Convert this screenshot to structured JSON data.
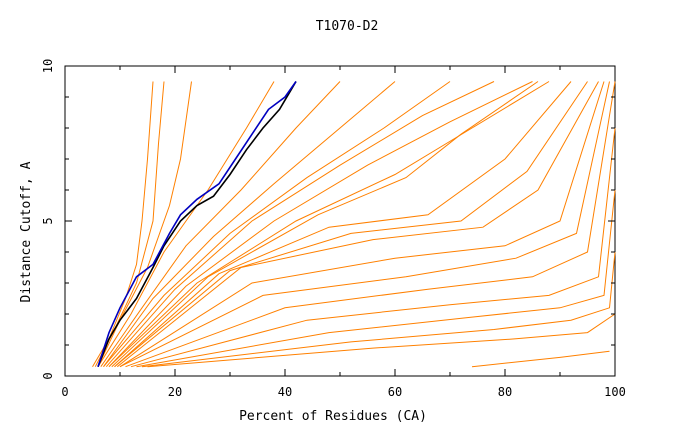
{
  "chart_data": {
    "type": "line",
    "title": "T1070-D2",
    "xlabel": "Percent of Residues (CA)",
    "ylabel": "Distance Cutoff, A",
    "xlim": [
      0,
      100
    ],
    "ylim": [
      0,
      10
    ],
    "xticks": [
      "0",
      "20",
      "40",
      "60",
      "80",
      "100"
    ],
    "yticks": [
      "0",
      "5",
      "10"
    ],
    "grid": false,
    "colors": {
      "orange": "#ff8000",
      "highlight_blue": "#0000c0",
      "highlight_black": "#000000"
    },
    "series": [
      {
        "color": "#ff8000",
        "points": [
          [
            5,
            0.3
          ],
          [
            8,
            1.2
          ],
          [
            11,
            2.5
          ],
          [
            13,
            3.6
          ],
          [
            14,
            5.0
          ],
          [
            15,
            7.0
          ],
          [
            16,
            9.5
          ]
        ]
      },
      {
        "color": "#ff8000",
        "points": [
          [
            5.5,
            0.3
          ],
          [
            9,
            1.5
          ],
          [
            13,
            3.0
          ],
          [
            16,
            5.0
          ],
          [
            17,
            7.5
          ],
          [
            18,
            9.5
          ]
        ]
      },
      {
        "color": "#ff8000",
        "points": [
          [
            6,
            0.3
          ],
          [
            10,
            1.8
          ],
          [
            15,
            3.5
          ],
          [
            19,
            5.5
          ],
          [
            21,
            7.0
          ],
          [
            23,
            9.5
          ]
        ]
      },
      {
        "color": "#ff8000",
        "points": [
          [
            6,
            0.3
          ],
          [
            12,
            2.0
          ],
          [
            18,
            4.0
          ],
          [
            26,
            6.0
          ],
          [
            33,
            8.0
          ],
          [
            38,
            9.5
          ]
        ]
      },
      {
        "color": "#ff8000",
        "points": [
          [
            6.5,
            0.3
          ],
          [
            14,
            2.2
          ],
          [
            22,
            4.2
          ],
          [
            32,
            6.0
          ],
          [
            42,
            8.0
          ],
          [
            50,
            9.5
          ]
        ]
      },
      {
        "color": "#ff8000",
        "points": [
          [
            7,
            0.3
          ],
          [
            16,
            2.5
          ],
          [
            27,
            4.5
          ],
          [
            38,
            6.2
          ],
          [
            50,
            8.0
          ],
          [
            60,
            9.5
          ]
        ]
      },
      {
        "color": "#ff8000",
        "points": [
          [
            7,
            0.3
          ],
          [
            18,
            2.6
          ],
          [
            30,
            4.6
          ],
          [
            44,
            6.4
          ],
          [
            58,
            8.0
          ],
          [
            70,
            9.5
          ]
        ]
      },
      {
        "color": "#ff8000",
        "points": [
          [
            7.5,
            0.3
          ],
          [
            20,
            2.8
          ],
          [
            34,
            5.0
          ],
          [
            50,
            6.8
          ],
          [
            65,
            8.4
          ],
          [
            78,
            9.5
          ]
        ]
      },
      {
        "color": "#ff8000",
        "points": [
          [
            8,
            0.3
          ],
          [
            22,
            2.9
          ],
          [
            38,
            5.0
          ],
          [
            55,
            6.8
          ],
          [
            70,
            8.2
          ],
          [
            85,
            9.5
          ]
        ]
      },
      {
        "color": "#ff8000",
        "points": [
          [
            8,
            0.3
          ],
          [
            24,
            3.0
          ],
          [
            42,
            5.0
          ],
          [
            60,
            6.5
          ],
          [
            74,
            8.0
          ],
          [
            88,
            9.5
          ]
        ]
      },
      {
        "color": "#ff8000",
        "points": [
          [
            8.5,
            0.3
          ],
          [
            26,
            3.2
          ],
          [
            46,
            5.2
          ],
          [
            62,
            6.4
          ],
          [
            72,
            7.8
          ],
          [
            86,
            9.5
          ]
        ]
      },
      {
        "color": "#ff8000",
        "points": [
          [
            9,
            0.3
          ],
          [
            28,
            3.3
          ],
          [
            48,
            4.8
          ],
          [
            66,
            5.2
          ],
          [
            80,
            7.0
          ],
          [
            92,
            9.5
          ]
        ]
      },
      {
        "color": "#ff8000",
        "points": [
          [
            9,
            0.3
          ],
          [
            30,
            3.4
          ],
          [
            52,
            4.6
          ],
          [
            72,
            5.0
          ],
          [
            84,
            6.6
          ],
          [
            95,
            9.5
          ]
        ]
      },
      {
        "color": "#ff8000",
        "points": [
          [
            9.5,
            0.3
          ],
          [
            32,
            3.5
          ],
          [
            56,
            4.4
          ],
          [
            76,
            4.8
          ],
          [
            86,
            6.0
          ],
          [
            97,
            9.5
          ]
        ]
      },
      {
        "color": "#ff8000",
        "points": [
          [
            10,
            0.3
          ],
          [
            34,
            3.0
          ],
          [
            60,
            3.8
          ],
          [
            80,
            4.2
          ],
          [
            90,
            5.0
          ],
          [
            98,
            9.5
          ]
        ]
      },
      {
        "color": "#ff8000",
        "points": [
          [
            10,
            0.3
          ],
          [
            36,
            2.6
          ],
          [
            62,
            3.2
          ],
          [
            82,
            3.8
          ],
          [
            93,
            4.6
          ],
          [
            99,
            9.5
          ]
        ]
      },
      {
        "color": "#ff8000",
        "points": [
          [
            11,
            0.3
          ],
          [
            40,
            2.2
          ],
          [
            66,
            2.8
          ],
          [
            85,
            3.2
          ],
          [
            95,
            4.0
          ],
          [
            100,
            9.5
          ]
        ]
      },
      {
        "color": "#ff8000",
        "points": [
          [
            12,
            0.3
          ],
          [
            44,
            1.8
          ],
          [
            70,
            2.3
          ],
          [
            88,
            2.6
          ],
          [
            97,
            3.2
          ],
          [
            100,
            8.0
          ]
        ]
      },
      {
        "color": "#ff8000",
        "points": [
          [
            13,
            0.3
          ],
          [
            48,
            1.4
          ],
          [
            74,
            1.9
          ],
          [
            90,
            2.2
          ],
          [
            98,
            2.6
          ],
          [
            100,
            6.0
          ]
        ]
      },
      {
        "color": "#ff8000",
        "points": [
          [
            14,
            0.3
          ],
          [
            52,
            1.1
          ],
          [
            78,
            1.5
          ],
          [
            92,
            1.8
          ],
          [
            99,
            2.2
          ],
          [
            100,
            4.0
          ]
        ]
      },
      {
        "color": "#ff8000",
        "points": [
          [
            15,
            0.3
          ],
          [
            56,
            0.9
          ],
          [
            82,
            1.2
          ],
          [
            95,
            1.4
          ],
          [
            100,
            2.0
          ]
        ]
      },
      {
        "color": "#ff8000",
        "points": [
          [
            74,
            0.3
          ],
          [
            90,
            0.6
          ],
          [
            99,
            0.8
          ]
        ]
      },
      {
        "color": "#000000",
        "points": [
          [
            6,
            0.3
          ],
          [
            8,
            1.2
          ],
          [
            10,
            1.8
          ],
          [
            13,
            2.5
          ],
          [
            16,
            3.5
          ],
          [
            18,
            4.2
          ],
          [
            21,
            5.0
          ],
          [
            24,
            5.5
          ],
          [
            27,
            5.8
          ],
          [
            30,
            6.5
          ],
          [
            33,
            7.3
          ],
          [
            36,
            8.0
          ],
          [
            39,
            8.6
          ],
          [
            41,
            9.2
          ],
          [
            42,
            9.5
          ]
        ]
      },
      {
        "color": "#0000c0",
        "points": [
          [
            6,
            0.3
          ],
          [
            8,
            1.4
          ],
          [
            10,
            2.2
          ],
          [
            13,
            3.2
          ],
          [
            16,
            3.6
          ],
          [
            19,
            4.6
          ],
          [
            21,
            5.2
          ],
          [
            24,
            5.7
          ],
          [
            28,
            6.2
          ],
          [
            31,
            7.0
          ],
          [
            34,
            7.8
          ],
          [
            37,
            8.6
          ],
          [
            40,
            9.0
          ],
          [
            42,
            9.5
          ]
        ]
      }
    ]
  }
}
